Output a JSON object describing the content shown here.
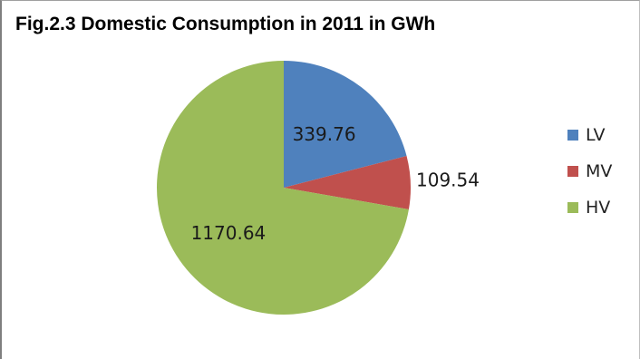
{
  "chart_data": {
    "type": "pie",
    "title": "Fig.2.3 Domestic Consumption  in 2011 in GWh",
    "categories": [
      "LV",
      "MV",
      "HV"
    ],
    "values": [
      339.76,
      109.54,
      1170.64
    ],
    "data_labels": [
      "339.76",
      "109.54",
      "1170.64"
    ],
    "colors": [
      "#4f81bd",
      "#c0504d",
      "#9bbb59"
    ],
    "legend_placement": "right",
    "start_angle": "12 o'clock",
    "direction": "clockwise"
  }
}
